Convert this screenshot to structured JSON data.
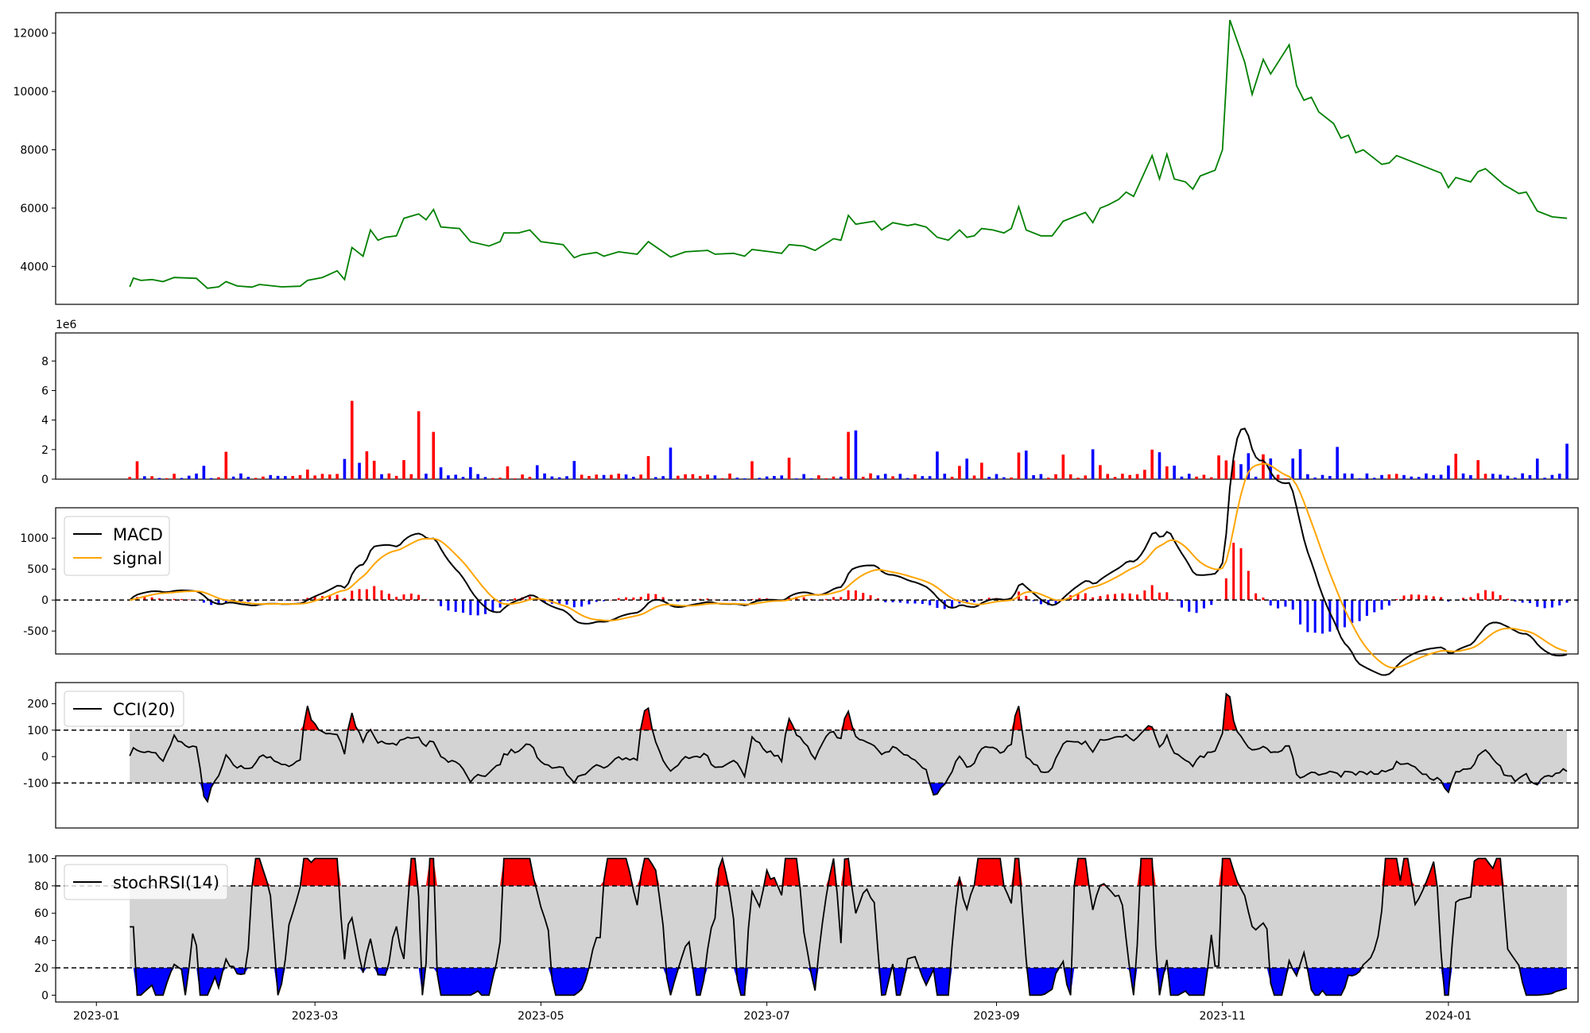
{
  "colors": {
    "price_line": "#008000",
    "up": "#ff0000",
    "down": "#0000ff",
    "macd_line": "#000000",
    "signal_line": "#ffa500",
    "band_fill": "#d3d3d3",
    "axes_edge": "#000000"
  },
  "x_axis": {
    "ticks": [
      "2023-01",
      "2023-03",
      "2023-05",
      "2023-07",
      "2023-09",
      "2023-11",
      "2024-01"
    ],
    "tick_dates": [
      "2023-01-01",
      "2023-03-01",
      "2023-05-01",
      "2023-07-01",
      "2023-09-01",
      "2023-11-01",
      "2024-01-01"
    ]
  },
  "chart_data": [
    {
      "type": "line",
      "panel": "price",
      "title": "",
      "ylim": [
        2700,
        12700
      ],
      "yticks": [
        4000,
        6000,
        8000,
        10000,
        12000
      ],
      "xlim": [
        "2022-12-21",
        "2024-02-05"
      ],
      "grid": false,
      "series": [
        {
          "color": "#008000",
          "points": [
            [
              "2023-01-10",
              3300
            ],
            [
              "2023-01-11",
              3600
            ],
            [
              "2023-01-13",
              3520
            ],
            [
              "2023-01-16",
              3550
            ],
            [
              "2023-01-19",
              3480
            ],
            [
              "2023-01-22",
              3620
            ],
            [
              "2023-01-28",
              3590
            ],
            [
              "2023-01-31",
              3250
            ],
            [
              "2023-02-03",
              3300
            ],
            [
              "2023-02-05",
              3480
            ],
            [
              "2023-02-08",
              3330
            ],
            [
              "2023-02-12",
              3290
            ],
            [
              "2023-02-14",
              3380
            ],
            [
              "2023-02-20",
              3300
            ],
            [
              "2023-02-25",
              3320
            ],
            [
              "2023-02-27",
              3520
            ],
            [
              "2023-03-03",
              3620
            ],
            [
              "2023-03-07",
              3850
            ],
            [
              "2023-03-09",
              3550
            ],
            [
              "2023-03-11",
              4650
            ],
            [
              "2023-03-14",
              4350
            ],
            [
              "2023-03-16",
              5250
            ],
            [
              "2023-03-18",
              4900
            ],
            [
              "2023-03-20",
              5000
            ],
            [
              "2023-03-23",
              5050
            ],
            [
              "2023-03-25",
              5650
            ],
            [
              "2023-03-29",
              5800
            ],
            [
              "2023-03-31",
              5600
            ],
            [
              "2023-04-02",
              5950
            ],
            [
              "2023-04-04",
              5350
            ],
            [
              "2023-04-09",
              5300
            ],
            [
              "2023-04-12",
              4850
            ],
            [
              "2023-04-17",
              4700
            ],
            [
              "2023-04-20",
              4850
            ],
            [
              "2023-04-21",
              5150
            ],
            [
              "2023-04-25",
              5150
            ],
            [
              "2023-04-28",
              5250
            ],
            [
              "2023-05-01",
              4850
            ],
            [
              "2023-05-07",
              4750
            ],
            [
              "2023-05-10",
              4300
            ],
            [
              "2023-05-12",
              4400
            ],
            [
              "2023-05-16",
              4480
            ],
            [
              "2023-05-18",
              4350
            ],
            [
              "2023-05-22",
              4500
            ],
            [
              "2023-05-27",
              4420
            ],
            [
              "2023-05-30",
              4850
            ],
            [
              "2023-06-05",
              4320
            ],
            [
              "2023-06-09",
              4500
            ],
            [
              "2023-06-15",
              4550
            ],
            [
              "2023-06-17",
              4420
            ],
            [
              "2023-06-22",
              4450
            ],
            [
              "2023-06-25",
              4350
            ],
            [
              "2023-06-27",
              4580
            ],
            [
              "2023-07-02",
              4500
            ],
            [
              "2023-07-05",
              4450
            ],
            [
              "2023-07-07",
              4750
            ],
            [
              "2023-07-11",
              4700
            ],
            [
              "2023-07-14",
              4550
            ],
            [
              "2023-07-19",
              4950
            ],
            [
              "2023-07-21",
              4900
            ],
            [
              "2023-07-23",
              5750
            ],
            [
              "2023-07-25",
              5450
            ],
            [
              "2023-07-30",
              5550
            ],
            [
              "2023-08-01",
              5250
            ],
            [
              "2023-08-04",
              5500
            ],
            [
              "2023-08-08",
              5400
            ],
            [
              "2023-08-10",
              5450
            ],
            [
              "2023-08-13",
              5350
            ],
            [
              "2023-08-16",
              5000
            ],
            [
              "2023-08-19",
              4900
            ],
            [
              "2023-08-22",
              5250
            ],
            [
              "2023-08-24",
              5000
            ],
            [
              "2023-08-26",
              5050
            ],
            [
              "2023-08-28",
              5300
            ],
            [
              "2023-08-31",
              5250
            ],
            [
              "2023-09-03",
              5150
            ],
            [
              "2023-09-05",
              5300
            ],
            [
              "2023-09-07",
              6050
            ],
            [
              "2023-09-09",
              5250
            ],
            [
              "2023-09-13",
              5050
            ],
            [
              "2023-09-16",
              5050
            ],
            [
              "2023-09-19",
              5550
            ],
            [
              "2023-09-25",
              5850
            ],
            [
              "2023-09-27",
              5500
            ],
            [
              "2023-09-29",
              6000
            ],
            [
              "2023-10-01",
              6100
            ],
            [
              "2023-10-04",
              6300
            ],
            [
              "2023-10-06",
              6550
            ],
            [
              "2023-10-08",
              6400
            ],
            [
              "2023-10-13",
              7800
            ],
            [
              "2023-10-15",
              7000
            ],
            [
              "2023-10-17",
              7850
            ],
            [
              "2023-10-19",
              7000
            ],
            [
              "2023-10-22",
              6900
            ],
            [
              "2023-10-24",
              6650
            ],
            [
              "2023-10-26",
              7100
            ],
            [
              "2023-10-30",
              7300
            ],
            [
              "2023-11-01",
              8000
            ],
            [
              "2023-11-03",
              12450
            ],
            [
              "2023-11-07",
              11000
            ],
            [
              "2023-11-09",
              9900
            ],
            [
              "2023-11-12",
              11100
            ],
            [
              "2023-11-14",
              10600
            ],
            [
              "2023-11-19",
              11600
            ],
            [
              "2023-11-21",
              10200
            ],
            [
              "2023-11-23",
              9700
            ],
            [
              "2023-11-25",
              9800
            ],
            [
              "2023-11-27",
              9300
            ],
            [
              "2023-12-01",
              8900
            ],
            [
              "2023-12-03",
              8400
            ],
            [
              "2023-12-05",
              8500
            ],
            [
              "2023-12-07",
              7900
            ],
            [
              "2023-12-09",
              8000
            ],
            [
              "2023-12-11",
              7800
            ],
            [
              "2023-12-14",
              7500
            ],
            [
              "2023-12-16",
              7550
            ],
            [
              "2023-12-18",
              7800
            ],
            [
              "2023-12-30",
              7200
            ],
            [
              "2024-01-01",
              6700
            ],
            [
              "2024-01-03",
              7050
            ],
            [
              "2024-01-07",
              6900
            ],
            [
              "2024-01-09",
              7250
            ],
            [
              "2024-01-11",
              7350
            ],
            [
              "2024-01-16",
              6800
            ],
            [
              "2024-01-20",
              6500
            ],
            [
              "2024-01-22",
              6550
            ],
            [
              "2024-01-25",
              5900
            ],
            [
              "2024-01-29",
              5700
            ],
            [
              "2024-02-02",
              5650
            ]
          ]
        }
      ]
    },
    {
      "type": "bar",
      "panel": "volume",
      "title": "",
      "ylim": [
        0,
        9900000
      ],
      "yticks": [
        0,
        2,
        4,
        6,
        8
      ],
      "scale_offset_label": "1e6",
      "grid": false
    },
    {
      "type": "line",
      "panel": "macd",
      "title": "",
      "ylim": [
        -870,
        1490
      ],
      "yticks": [
        -500,
        0,
        500,
        1000
      ],
      "reference_lines": [
        0
      ],
      "legend": {
        "placement": "top-left",
        "entries": [
          "MACD",
          "signal"
        ]
      },
      "grid": false,
      "series": [
        {
          "name": "MACD",
          "color": "#000000"
        },
        {
          "name": "signal",
          "color": "#ffa500"
        }
      ],
      "histogram": {
        "up_color": "#ff0000",
        "down_color": "#0000ff"
      }
    },
    {
      "type": "area",
      "panel": "cci",
      "title": "",
      "ylim": [
        -270,
        280
      ],
      "yticks": [
        -100,
        0,
        100,
        200
      ],
      "reference_lines": [
        -100,
        100
      ],
      "legend": {
        "placement": "top-left",
        "entries": [
          "CCI(20)"
        ]
      },
      "grid": false,
      "series": [
        {
          "name": "CCI(20)",
          "color": "#000000"
        }
      ]
    },
    {
      "type": "area",
      "panel": "stochrsi",
      "title": "",
      "ylim": [
        -5,
        102
      ],
      "yticks": [
        0,
        20,
        40,
        60,
        80,
        100
      ],
      "reference_lines": [
        20,
        80
      ],
      "legend": {
        "placement": "top-left",
        "entries": [
          "stochRSI(14)"
        ]
      },
      "grid": false,
      "series": [
        {
          "name": "stochRSI(14)",
          "color": "#000000"
        }
      ]
    }
  ]
}
